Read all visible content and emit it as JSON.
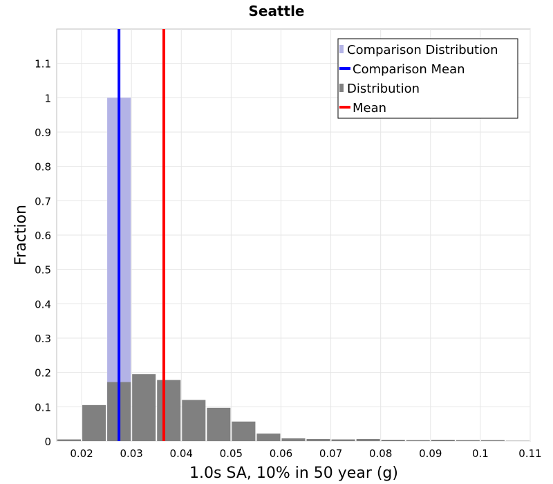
{
  "chart_data": {
    "type": "bar",
    "title": "Seattle",
    "xlabel": "1.0s SA, 10% in 50 year (g)",
    "ylabel": "Fraction",
    "xlim": [
      0.015,
      0.11
    ],
    "ylim": [
      0,
      1.2
    ],
    "bin_width": 0.005,
    "x_ticks": [
      "0.02",
      "0.03",
      "0.04",
      "0.05",
      "0.06",
      "0.07",
      "0.08",
      "0.09",
      "0.1",
      "0.11"
    ],
    "y_ticks": [
      "0",
      "0.1",
      "0.2",
      "0.3",
      "0.4",
      "0.5",
      "0.6",
      "0.7",
      "0.8",
      "0.9",
      "1",
      "1.1"
    ],
    "grid": true,
    "legend_position": "top-right",
    "series": [
      {
        "name": "Comparison Distribution",
        "kind": "bars",
        "color": "#b3b3e6",
        "x": [
          0.0275
        ],
        "values": [
          1.0
        ]
      },
      {
        "name": "Comparison Mean",
        "kind": "vline",
        "color": "#0000ff",
        "x": 0.0275
      },
      {
        "name": "Distribution",
        "kind": "bars",
        "color": "#808080",
        "x": [
          0.0175,
          0.0225,
          0.0275,
          0.0325,
          0.0375,
          0.0425,
          0.0475,
          0.0525,
          0.0575,
          0.0625,
          0.0675,
          0.0725,
          0.0775,
          0.0825,
          0.0875,
          0.0925,
          0.0975,
          0.1025,
          0.1075
        ],
        "values": [
          0.005,
          0.105,
          0.172,
          0.195,
          0.178,
          0.12,
          0.097,
          0.057,
          0.022,
          0.008,
          0.006,
          0.005,
          0.006,
          0.004,
          0.003,
          0.004,
          0.003,
          0.003,
          0.001
        ]
      },
      {
        "name": "Mean",
        "kind": "vline",
        "color": "#ff0000",
        "x": 0.0365
      }
    ]
  }
}
